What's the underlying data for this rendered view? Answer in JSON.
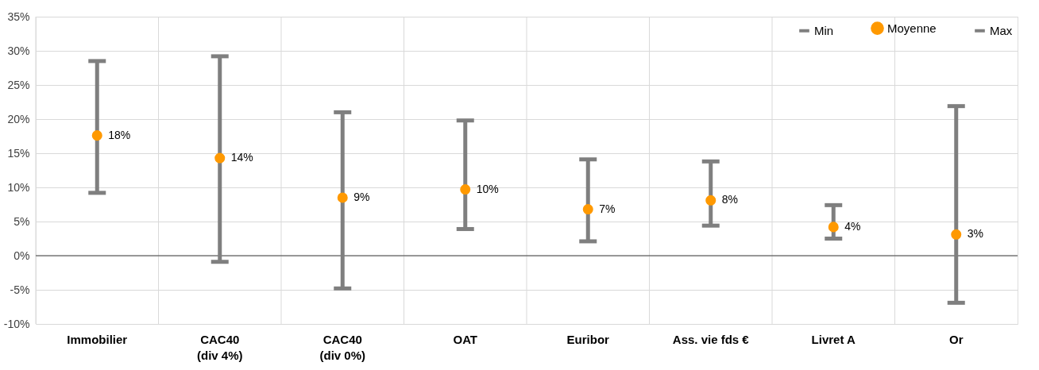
{
  "chart_data": {
    "type": "scatter",
    "categories": [
      "Immobilier",
      "CAC40\n(div 4%)",
      "CAC40\n(div 0%)",
      "OAT",
      "Euribor",
      "Ass. vie fds €",
      "Livret A",
      "Or"
    ],
    "series": [
      {
        "name": "Min",
        "color": "#7f7f7f",
        "marker": "none",
        "values": [
          null,
          null,
          null,
          null,
          null,
          null,
          null,
          null
        ]
      },
      {
        "name": "Moyenne",
        "marker": "circle",
        "color": "#ff9900",
        "values": [
          17.6,
          14.3,
          8.5,
          9.7,
          6.8,
          8.1,
          4.2,
          3.1
        ],
        "value_labels": [
          "18%",
          "14%",
          "9%",
          "10%",
          "7%",
          "8%",
          "4%",
          "3%"
        ],
        "errors": [
          [
            9.2,
            28.5
          ],
          [
            -0.9,
            29.2
          ],
          [
            -4.8,
            21.0
          ],
          [
            3.9,
            19.8
          ],
          [
            2.1,
            14.1
          ],
          [
            4.4,
            13.8
          ],
          [
            2.5,
            7.4
          ],
          [
            -6.9,
            21.9
          ]
        ]
      },
      {
        "name": "Max",
        "color": "#7f7f7f",
        "marker": "none",
        "values": [
          null,
          null,
          null,
          null,
          null,
          null,
          null,
          null
        ]
      }
    ],
    "ylim": [
      -10,
      35
    ],
    "yticks": [
      {
        "value": -10,
        "label": "-10%"
      },
      {
        "value": -5,
        "label": "-5%"
      },
      {
        "value": 0,
        "label": "0%"
      },
      {
        "value": 5,
        "label": "5%"
      },
      {
        "value": 10,
        "label": "10%"
      },
      {
        "value": 15,
        "label": "15%"
      },
      {
        "value": 20,
        "label": "20%"
      },
      {
        "value": 25,
        "label": "25%"
      },
      {
        "value": 30,
        "label": "30%"
      },
      {
        "value": 35,
        "label": "35%"
      }
    ],
    "ref_lines": [
      {
        "axis": "y",
        "value": 0,
        "color": "#404040"
      }
    ],
    "grid": true,
    "legend": "top right"
  }
}
